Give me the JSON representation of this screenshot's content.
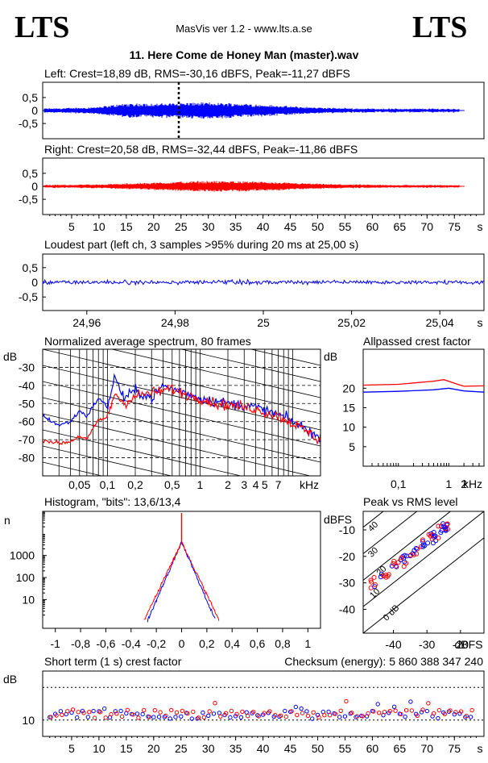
{
  "header": {
    "logo_left": "LTS",
    "logo_right": "LTS",
    "app": "MasVis ver 1.2 - www.lts.a.se",
    "track": "11. Here Come de Honey Man (master).wav"
  },
  "colors": {
    "left": "#0000ff",
    "right": "#ff0000"
  },
  "panels": {
    "left_title": "Left: Crest=18,89 dB, RMS=-30,16 dBFS, Peak=-11,27 dBFS",
    "right_title": "Right: Crest=20,58 dB, RMS=-32,44 dBFS, Peak=-11,86 dBFS",
    "loud_title": "Loudest part (left  ch, 3 samples >95% during 20 ms at 25,00 s)",
    "spec_title": "Normalized average spectrum, 80 frames",
    "allpass_title": "Allpassed crest factor",
    "hist_title": "Histogram, \"bits\": 13,6/13,4",
    "peakrms_title": "Peak vs RMS level",
    "short_title": "Short term (1 s) crest factor",
    "checksum": "Checksum (energy):   5 860 388 347 240"
  },
  "chart_data": [
    {
      "type": "line",
      "name": "waveform-left",
      "yticks": [
        "0,5",
        "0",
        "-0,5"
      ],
      "ylim": [
        -1,
        1
      ],
      "xlim": [
        0,
        80
      ],
      "marker_x": 25.0
    },
    {
      "type": "line",
      "name": "waveform-right",
      "yticks": [
        "0,5",
        "0",
        "-0,5"
      ],
      "ylim": [
        -1,
        1
      ],
      "xlim": [
        0,
        80
      ],
      "xticks": [
        "5",
        "10",
        "15",
        "20",
        "25",
        "30",
        "35",
        "40",
        "45",
        "50",
        "55",
        "60",
        "65",
        "70",
        "75"
      ],
      "xunit": "s"
    },
    {
      "type": "line",
      "name": "loudest-part",
      "yticks": [
        "0,5",
        "0",
        "-0,5"
      ],
      "ylim": [
        -1,
        1
      ],
      "xlim": [
        24.95,
        25.05
      ],
      "xticks": [
        "24,96",
        "24,98",
        "25",
        "25,02",
        "25,04"
      ],
      "xunit": "s"
    },
    {
      "type": "line",
      "name": "average-spectrum",
      "ylabel": "dB",
      "yticks": [
        "-30",
        "-40",
        "-50",
        "-60",
        "-70",
        "-80"
      ],
      "ylim": [
        -90,
        -20
      ],
      "xticks": [
        "0,05",
        "0,1",
        "0,2",
        "0,5",
        "1",
        "2",
        "3",
        "4",
        "5",
        "7"
      ],
      "xunit": "kHz",
      "xlim": [
        0.02,
        20
      ],
      "series": [
        {
          "name": "left",
          "points": [
            [
              0.02,
              -57
            ],
            [
              0.03,
              -62
            ],
            [
              0.04,
              -60
            ],
            [
              0.05,
              -54
            ],
            [
              0.06,
              -57
            ],
            [
              0.08,
              -47
            ],
            [
              0.1,
              -52
            ],
            [
              0.12,
              -35
            ],
            [
              0.15,
              -47
            ],
            [
              0.2,
              -43
            ],
            [
              0.3,
              -47
            ],
            [
              0.4,
              -40
            ],
            [
              0.5,
              -42
            ],
            [
              0.7,
              -44
            ],
            [
              1,
              -47
            ],
            [
              1.5,
              -49
            ],
            [
              2,
              -50
            ],
            [
              3,
              -51
            ],
            [
              4,
              -52
            ],
            [
              5,
              -54
            ],
            [
              7,
              -56
            ],
            [
              10,
              -60
            ],
            [
              15,
              -65
            ],
            [
              20,
              -70
            ]
          ]
        },
        {
          "name": "right",
          "points": [
            [
              0.02,
              -70
            ],
            [
              0.03,
              -72
            ],
            [
              0.04,
              -71
            ],
            [
              0.05,
              -68
            ],
            [
              0.06,
              -70
            ],
            [
              0.08,
              -59
            ],
            [
              0.1,
              -58
            ],
            [
              0.12,
              -44
            ],
            [
              0.15,
              -50
            ],
            [
              0.2,
              -46
            ],
            [
              0.3,
              -44
            ],
            [
              0.4,
              -43
            ],
            [
              0.5,
              -42
            ],
            [
              0.7,
              -45
            ],
            [
              1,
              -47
            ],
            [
              1.5,
              -50
            ],
            [
              2,
              -51
            ],
            [
              3,
              -52
            ],
            [
              4,
              -53
            ],
            [
              5,
              -55
            ],
            [
              7,
              -57
            ],
            [
              10,
              -61
            ],
            [
              15,
              -66
            ],
            [
              20,
              -71
            ]
          ]
        }
      ]
    },
    {
      "type": "line",
      "name": "allpassed-crest-factor",
      "ylabel": "dB",
      "yticks": [
        "20",
        "15",
        "10",
        "5"
      ],
      "ylim": [
        0,
        30
      ],
      "xticks": [
        "0,1",
        "1",
        "2"
      ],
      "xunit": "kHz",
      "xlim": [
        0.02,
        5
      ],
      "series": [
        {
          "name": "left",
          "points": [
            [
              0.02,
              19.0
            ],
            [
              0.1,
              19.2
            ],
            [
              0.5,
              19.6
            ],
            [
              1,
              20.0
            ],
            [
              2,
              19.3
            ],
            [
              5,
              19.0
            ]
          ]
        },
        {
          "name": "right",
          "points": [
            [
              0.02,
              20.8
            ],
            [
              0.1,
              21.0
            ],
            [
              0.5,
              21.8
            ],
            [
              0.8,
              22.2
            ],
            [
              1.5,
              21.0
            ],
            [
              2,
              20.5
            ],
            [
              5,
              20.6
            ]
          ]
        }
      ]
    },
    {
      "type": "line",
      "name": "histogram",
      "ylabel": "n",
      "yticks": [
        "1000",
        "100",
        "10"
      ],
      "ylog": true,
      "xticks": [
        "-1",
        "-0,8",
        "-0,6",
        "-0,4",
        "-0,2",
        "0",
        "0,2",
        "0,4",
        "0,6",
        "0,8",
        "1"
      ],
      "xlim": [
        -1.1,
        1.1
      ]
    },
    {
      "type": "scatter",
      "name": "peak-vs-rms",
      "ylabel": "dBFS",
      "yticks": [
        "-10",
        "-20",
        "-30",
        "-40"
      ],
      "ylim": [
        -49,
        -3
      ],
      "xticks": [
        "-40",
        "-30",
        "-20"
      ],
      "xunit": "dBFS",
      "xlim": [
        -49,
        -13
      ],
      "diagonal_labels": [
        "40",
        "30",
        "20",
        "10",
        "0 dB"
      ]
    },
    {
      "type": "scatter",
      "name": "short-term-crest",
      "ylabel": "dB",
      "yticks": [
        "10"
      ],
      "ylim": [
        5,
        25
      ],
      "xticks": [
        "5",
        "10",
        "15",
        "20",
        "25",
        "30",
        "35",
        "40",
        "45",
        "50",
        "55",
        "60",
        "65",
        "70",
        "75"
      ],
      "xunit": "s",
      "xlim": [
        0,
        80
      ]
    }
  ]
}
